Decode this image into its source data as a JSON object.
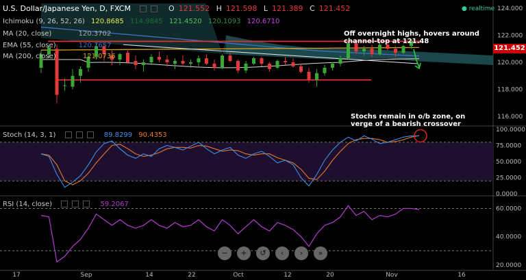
{
  "header": {
    "symbol": "U.S. Dollar/Japanese Yen, D, FXCM",
    "ohlc": {
      "o_label": "O",
      "o": "121.552",
      "h_label": "H",
      "h": "121.598",
      "l_label": "L",
      "l": "121.389",
      "c_label": "C",
      "c": "121.452"
    },
    "realtime": "realtime"
  },
  "indicators": {
    "ichimoku": {
      "label": "Ichimoku (9, 26, 52, 26)",
      "v1": "120.8685",
      "v2": "114.9845",
      "v3": "121.4520",
      "v4": "120.1093",
      "v5": "120.6710"
    },
    "ma20": {
      "label": "MA (20, close)",
      "value": "120.3702"
    },
    "ema55": {
      "label": "EMA (55, close)",
      "value": "120.7657"
    },
    "ma200": {
      "label": "MA (200, close)",
      "value": "121.0736"
    }
  },
  "stoch": {
    "label": "Stoch (14, 3, 1)",
    "k": "89.8299",
    "d": "90.4353"
  },
  "rsi": {
    "label": "RSI (14, close)",
    "value": "59.2067"
  },
  "annotations": {
    "price": "Off overnight highs, hovers around channel-top at 121.48",
    "stoch": "Stochs remain in o/b zone, on verge of a bearish crossover"
  },
  "current_price": "121.452",
  "nav_icons": [
    "zoom-out-icon",
    "zoom-in-icon",
    "reset-icon",
    "scroll-left-icon",
    "scroll-right-icon",
    "go-last-icon"
  ],
  "colors": {
    "up": "#3aa835",
    "down": "#e23a3a",
    "ma20": "#d8d8d8",
    "ema55": "#3f72c4",
    "ma200": "#d8a020",
    "stoch_k": "#3f8fe8",
    "stoch_d": "#e8782a",
    "rsi": "#b43cd0",
    "cloud": "#1f4f52"
  },
  "chart_data": {
    "type": "candlestick",
    "price_axis": {
      "ticks": [
        "124.000",
        "122.000",
        "120.000",
        "118.000",
        "116.000"
      ],
      "ylim": [
        115.3,
        124.6
      ]
    },
    "stoch_axis": {
      "ticks": [
        "100.0000",
        "75.0000",
        "50.0000",
        "25.0000",
        "0.0000"
      ],
      "ylim": [
        0,
        100
      ]
    },
    "rsi_axis": {
      "ticks": [
        "60.0000",
        "40.0000",
        "20.0000"
      ],
      "ylim": [
        16,
        68
      ]
    },
    "x_ticks": [
      "17",
      "Sep",
      "14",
      "22",
      "Oct",
      "12",
      "20",
      "Nov",
      "16"
    ],
    "candles": [
      [
        119.6,
        120.9,
        119.2,
        120.6
      ],
      [
        120.6,
        121.2,
        120.3,
        121.1
      ],
      [
        121.0,
        121.3,
        117.0,
        117.6
      ],
      [
        118.3,
        118.8,
        117.9,
        118.3
      ],
      [
        118.2,
        119.5,
        118.0,
        119.0
      ],
      [
        119.0,
        119.7,
        118.5,
        119.5
      ],
      [
        119.6,
        120.6,
        119.3,
        120.4
      ],
      [
        120.4,
        121.4,
        120.2,
        121.2
      ],
      [
        121.2,
        121.3,
        120.1,
        120.6
      ],
      [
        120.5,
        120.9,
        119.8,
        120.2
      ],
      [
        120.2,
        120.7,
        119.8,
        120.6
      ],
      [
        120.7,
        121.0,
        119.9,
        120.0
      ],
      [
        120.1,
        120.5,
        119.5,
        119.8
      ],
      [
        119.8,
        120.2,
        119.3,
        120.0
      ],
      [
        120.0,
        120.6,
        119.8,
        120.4
      ],
      [
        120.4,
        120.8,
        120.0,
        120.2
      ],
      [
        120.2,
        120.5,
        119.7,
        120.0
      ],
      [
        119.9,
        120.3,
        119.5,
        120.1
      ],
      [
        120.1,
        120.5,
        119.8,
        119.9
      ],
      [
        119.9,
        120.2,
        119.6,
        120.0
      ],
      [
        120.0,
        120.5,
        119.7,
        120.3
      ],
      [
        120.3,
        120.6,
        119.8,
        119.9
      ],
      [
        119.9,
        120.2,
        119.4,
        119.6
      ],
      [
        119.6,
        120.6,
        119.5,
        120.5
      ],
      [
        120.5,
        120.7,
        120.0,
        120.1
      ],
      [
        120.1,
        120.2,
        119.2,
        119.4
      ],
      [
        119.4,
        120.1,
        119.2,
        119.9
      ],
      [
        119.9,
        120.4,
        119.8,
        120.3
      ],
      [
        120.3,
        120.4,
        119.7,
        119.9
      ],
      [
        119.9,
        120.0,
        119.3,
        119.5
      ],
      [
        119.6,
        120.2,
        119.5,
        120.1
      ],
      [
        120.1,
        120.4,
        119.8,
        120.0
      ],
      [
        120.0,
        120.3,
        119.6,
        119.7
      ],
      [
        119.7,
        119.9,
        119.2,
        119.3
      ],
      [
        119.3,
        119.6,
        118.5,
        118.7
      ],
      [
        118.7,
        119.5,
        118.2,
        119.2
      ],
      [
        119.2,
        119.8,
        119.0,
        119.6
      ],
      [
        119.6,
        120.0,
        119.4,
        119.9
      ],
      [
        119.9,
        120.5,
        119.7,
        120.3
      ],
      [
        120.3,
        121.5,
        120.2,
        121.4
      ],
      [
        121.4,
        121.6,
        120.6,
        120.8
      ],
      [
        120.8,
        121.2,
        120.5,
        121.0
      ],
      [
        121.0,
        121.3,
        120.4,
        120.6
      ],
      [
        120.6,
        121.5,
        120.5,
        121.3
      ],
      [
        121.3,
        121.5,
        120.9,
        121.0
      ],
      [
        121.0,
        121.2,
        120.4,
        120.7
      ],
      [
        120.7,
        121.3,
        120.6,
        121.2
      ],
      [
        121.2,
        121.7,
        121.0,
        121.6
      ],
      [
        121.6,
        121.6,
        121.4,
        121.45
      ]
    ],
    "cloud": {
      "upper": [
        122.0,
        121.6,
        121.3,
        121.1,
        121.0,
        121.0,
        120.9,
        120.8,
        120.7,
        120.6,
        120.5
      ],
      "lower": [
        120.6,
        120.5,
        120.4,
        120.3,
        120.2,
        120.2,
        120.3,
        120.1,
        120.0,
        119.9,
        119.8
      ]
    },
    "stoch_k": [
      62,
      58,
      30,
      10,
      18,
      28,
      45,
      65,
      78,
      82,
      70,
      60,
      55,
      62,
      58,
      70,
      75,
      72,
      68,
      74,
      80,
      70,
      62,
      68,
      72,
      60,
      55,
      62,
      66,
      58,
      48,
      52,
      45,
      25,
      12,
      30,
      52,
      68,
      80,
      88,
      82,
      90,
      85,
      78,
      80,
      84,
      88,
      90,
      89.8
    ],
    "stoch_d": [
      62,
      60,
      45,
      20,
      14,
      20,
      32,
      48,
      62,
      75,
      77,
      70,
      62,
      58,
      60,
      64,
      70,
      72,
      72,
      71,
      75,
      74,
      70,
      66,
      68,
      67,
      62,
      60,
      62,
      62,
      56,
      52,
      48,
      38,
      24,
      22,
      35,
      52,
      66,
      78,
      84,
      86,
      86,
      84,
      80,
      81,
      84,
      88,
      90.4
    ],
    "rsi": [
      55,
      54,
      22,
      26,
      33,
      38,
      46,
      56,
      52,
      48,
      52,
      48,
      46,
      48,
      52,
      48,
      46,
      50,
      47,
      48,
      52,
      47,
      44,
      52,
      48,
      42,
      47,
      52,
      47,
      44,
      50,
      48,
      45,
      40,
      33,
      42,
      48,
      50,
      54,
      62,
      55,
      58,
      52,
      55,
      54,
      56,
      60,
      60,
      59.2
    ]
  }
}
